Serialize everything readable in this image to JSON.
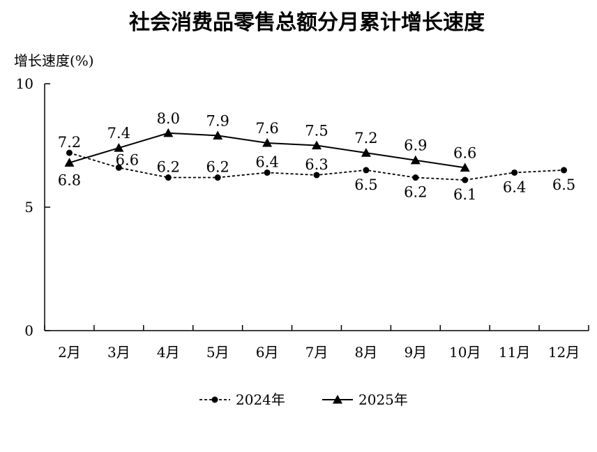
{
  "chart_data": {
    "type": "line",
    "title": "社会消费品零售总额分月累计增长速度",
    "ylabel": "增长速度(%)",
    "xlabel": "",
    "categories": [
      "2月",
      "3月",
      "4月",
      "5月",
      "6月",
      "7月",
      "8月",
      "9月",
      "10月",
      "11月",
      "12月"
    ],
    "ylim": [
      0,
      10
    ],
    "yticks": [
      "0",
      "5",
      "10"
    ],
    "grid": false,
    "legend_position": "bottom",
    "series": [
      {
        "name": "2024年",
        "values": [
          7.2,
          6.6,
          6.2,
          6.2,
          6.4,
          6.3,
          6.5,
          6.2,
          6.1,
          6.4,
          6.5
        ],
        "labels": [
          "7.2",
          "6.6",
          "6.2",
          "6.2",
          "6.4",
          "6.3",
          "6.5",
          "6.2",
          "6.1",
          "6.4",
          "6.5"
        ],
        "line_style": "dashed",
        "marker": "circle",
        "color": "#000000"
      },
      {
        "name": "2025年",
        "values": [
          6.8,
          7.4,
          8.0,
          7.9,
          7.6,
          7.5,
          7.2,
          6.9,
          6.6,
          null,
          null
        ],
        "labels": [
          "6.8",
          "7.4",
          "8.0",
          "7.9",
          "7.6",
          "7.5",
          "7.2",
          "6.9",
          "6.6",
          null,
          null
        ],
        "line_style": "solid",
        "marker": "triangle",
        "color": "#000000"
      }
    ]
  }
}
